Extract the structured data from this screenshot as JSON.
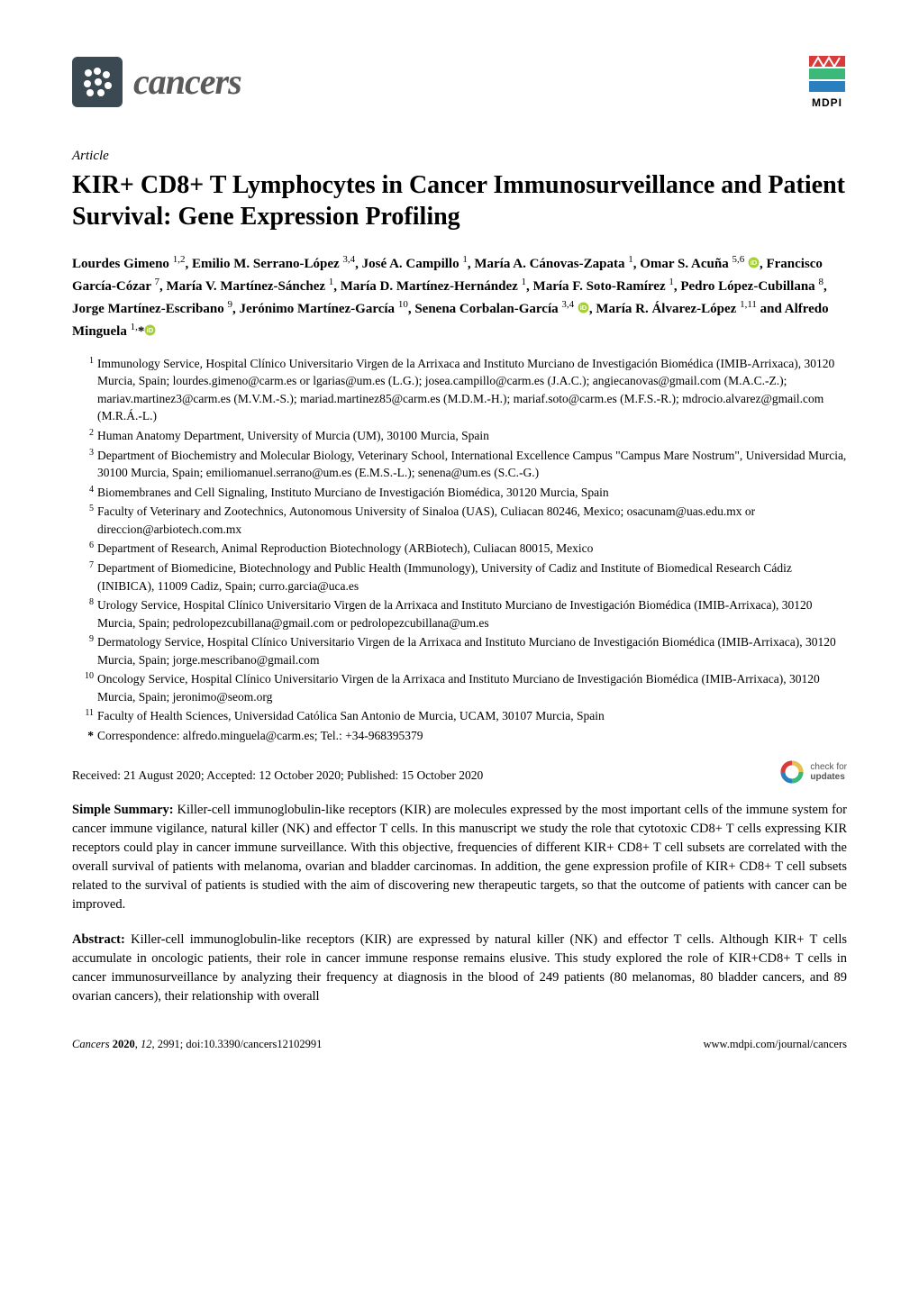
{
  "journal": {
    "name": "cancers",
    "logo_bg": "#3b4a52",
    "name_color": "#5a5a5a"
  },
  "publisher": {
    "name": "MDPI",
    "color_top": "#d93a3a",
    "color_mid": "#3cb878",
    "color_bot": "#2a7fbf"
  },
  "article_type": "Article",
  "title": "KIR+ CD8+ T Lymphocytes in Cancer Immunosurveillance and Patient Survival: Gene Expression Profiling",
  "authors_html": "Lourdes Gimeno <sup>1,2</sup>, Emilio M. Serrano-López <sup>3,4</sup>, José A. Campillo <sup>1</sup>, María A. Cánovas-Zapata <sup>1</sup>, Omar S. Acuña <sup>5,6</sup> <span class='orcid' data-name='orcid-icon' data-interactable='false'><svg viewBox='0 0 24 24'><circle cx='12' cy='12' r='11' fill='#a6ce39'/><text x='12' y='17' text-anchor='middle' font-size='14' fill='#fff' font-family='Arial' font-weight='bold'>iD</text></svg></span>, Francisco García-Cózar <sup>7</sup>, María V. Martínez-Sánchez <sup>1</sup>, María D. Martínez-Hernández <sup>1</sup>, María F. Soto-Ramírez <sup>1</sup>, Pedro López-Cubillana <sup>8</sup>, Jorge Martínez-Escribano <sup>9</sup>, Jerónimo Martínez-García <sup>10</sup>, Senena Corbalan-García <sup>3,4</sup> <span class='orcid' data-name='orcid-icon' data-interactable='false'><svg viewBox='0 0 24 24'><circle cx='12' cy='12' r='11' fill='#a6ce39'/><text x='12' y='17' text-anchor='middle' font-size='14' fill='#fff' font-family='Arial' font-weight='bold'>iD</text></svg></span>, María R. Álvarez-López <sup>1,11</sup> and Alfredo Minguela <sup>1,</sup>*<span class='orcid' data-name='orcid-icon' data-interactable='false'><svg viewBox='0 0 24 24'><circle cx='12' cy='12' r='11' fill='#a6ce39'/><text x='12' y='17' text-anchor='middle' font-size='14' fill='#fff' font-family='Arial' font-weight='bold'>iD</text></svg></span>",
  "affiliations": [
    {
      "num": "1",
      "text": "Immunology Service, Hospital Clínico Universitario Virgen de la Arrixaca and Instituto Murciano de Investigación Biomédica (IMIB-Arrixaca), 30120 Murcia, Spain; lourdes.gimeno@carm.es or lgarias@um.es (L.G.); josea.campillo@carm.es (J.A.C.); angiecanovas@gmail.com (M.A.C.-Z.); mariav.martinez3@carm.es (M.V.M.-S.); mariad.martinez85@carm.es (M.D.M.-H.); mariaf.soto@carm.es (M.F.S.-R.); mdrocio.alvarez@gmail.com (M.R.Á.-L.)"
    },
    {
      "num": "2",
      "text": "Human Anatomy Department, University of Murcia (UM), 30100 Murcia, Spain"
    },
    {
      "num": "3",
      "text": "Department of Biochemistry and Molecular Biology, Veterinary School, International Excellence Campus \"Campus Mare Nostrum\", Universidad Murcia, 30100 Murcia, Spain; emiliomanuel.serrano@um.es (E.M.S.-L.); senena@um.es (S.C.-G.)"
    },
    {
      "num": "4",
      "text": "Biomembranes and Cell Signaling, Instituto Murciano de Investigación Biomédica, 30120 Murcia, Spain"
    },
    {
      "num": "5",
      "text": "Faculty of Veterinary and Zootechnics, Autonomous University of Sinaloa (UAS), Culiacan 80246, Mexico; osacunam@uas.edu.mx or direccion@arbiotech.com.mx"
    },
    {
      "num": "6",
      "text": "Department of Research, Animal Reproduction Biotechnology (ARBiotech), Culiacan 80015, Mexico"
    },
    {
      "num": "7",
      "text": "Department of Biomedicine, Biotechnology and Public Health (Immunology), University of Cadiz and Institute of Biomedical Research Cádiz (INIBICA), 11009 Cadiz, Spain; curro.garcia@uca.es"
    },
    {
      "num": "8",
      "text": "Urology Service, Hospital Clínico Universitario Virgen de la Arrixaca and Instituto Murciano de Investigación Biomédica (IMIB-Arrixaca), 30120 Murcia, Spain; pedrolopezcubillana@gmail.com or pedrolopezcubillana@um.es"
    },
    {
      "num": "9",
      "text": "Dermatology Service, Hospital Clínico Universitario Virgen de la Arrixaca and Instituto Murciano de Investigación Biomédica (IMIB-Arrixaca), 30120 Murcia, Spain; jorge.mescribano@gmail.com"
    },
    {
      "num": "10",
      "text": "Oncology Service, Hospital Clínico Universitario Virgen de la Arrixaca and Instituto Murciano de Investigación Biomédica (IMIB-Arrixaca), 30120 Murcia, Spain; jeronimo@seom.org"
    },
    {
      "num": "11",
      "text": "Faculty of Health Sciences, Universidad Católica San Antonio de Murcia, UCAM, 30107 Murcia, Spain"
    }
  ],
  "correspondence": {
    "star": "*",
    "text": "Correspondence: alfredo.minguela@carm.es; Tel.: +34-968395379"
  },
  "dates": "Received: 21 August 2020; Accepted: 12 October 2020; Published: 15 October 2020",
  "updates": {
    "line1": "check for",
    "line2": "updates"
  },
  "simple_summary": {
    "label": "Simple Summary:",
    "text": " Killer-cell immunoglobulin-like receptors (KIR) are molecules expressed by the most important cells of the immune system for cancer immune vigilance, natural killer (NK) and effector T cells. In this manuscript we study the role that cytotoxic CD8+ T cells expressing KIR receptors could play in cancer immune surveillance. With this objective, frequencies of different KIR+ CD8+ T cell subsets are correlated with the overall survival of patients with melanoma, ovarian and bladder carcinomas. In addition, the gene expression profile of KIR+ CD8+ T cell subsets related to the survival of patients is studied with the aim of discovering new therapeutic targets, so that the outcome of patients with cancer can be improved."
  },
  "abstract": {
    "label": "Abstract:",
    "text": " Killer-cell immunoglobulin-like receptors (KIR) are expressed by natural killer (NK) and effector T cells. Although KIR+ T cells accumulate in oncologic patients, their role in cancer immune response remains elusive. This study explored the role of KIR+CD8+ T cells in cancer immunosurveillance by analyzing their frequency at diagnosis in the blood of 249 patients (80 melanomas, 80 bladder cancers, and 89 ovarian cancers), their relationship with overall"
  },
  "footer": {
    "journal_abbrev": "Cancers",
    "year": "2020",
    "volume": "12",
    "article_num": "2991",
    "doi": "doi:10.3390/cancers12102991",
    "url": "www.mdpi.com/journal/cancers"
  }
}
